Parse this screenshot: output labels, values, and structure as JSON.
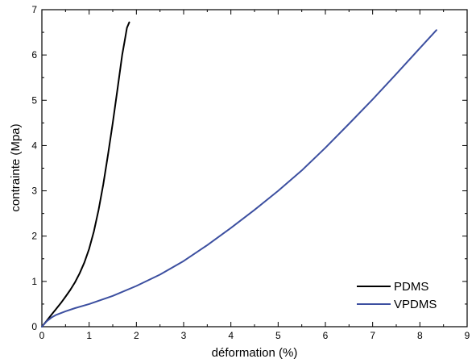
{
  "chart_data": {
    "type": "line",
    "xlabel": "déformation (%)",
    "ylabel": "contrainte (Mpa)",
    "xlim": [
      0,
      9
    ],
    "ylim": [
      0,
      7
    ],
    "xticks": [
      "0",
      "1",
      "2",
      "3",
      "4",
      "5",
      "6",
      "7",
      "8",
      "9"
    ],
    "yticks": [
      "0",
      "1",
      "2",
      "3",
      "4",
      "5",
      "6",
      "7"
    ],
    "grid": false,
    "legend_position": "bottom-right",
    "series": [
      {
        "name": "PDMS",
        "color": "#000000",
        "x": [
          0,
          0.1,
          0.2,
          0.3,
          0.4,
          0.5,
          0.6,
          0.7,
          0.8,
          0.9,
          1.0,
          1.1,
          1.2,
          1.3,
          1.4,
          1.5,
          1.6,
          1.7,
          1.75,
          1.8,
          1.85
        ],
        "y": [
          0,
          0.13,
          0.26,
          0.39,
          0.52,
          0.66,
          0.81,
          0.98,
          1.18,
          1.42,
          1.72,
          2.1,
          2.58,
          3.15,
          3.8,
          4.5,
          5.25,
          6.0,
          6.3,
          6.6,
          6.72
        ]
      },
      {
        "name": "VPDMS",
        "color": "#3c4fa0",
        "x": [
          0,
          0.1,
          0.2,
          0.3,
          0.5,
          0.7,
          1.0,
          1.5,
          2.0,
          2.5,
          3.0,
          3.5,
          4.0,
          4.5,
          5.0,
          5.5,
          6.0,
          6.5,
          7.0,
          7.5,
          8.0,
          8.35
        ],
        "y": [
          0,
          0.12,
          0.2,
          0.26,
          0.34,
          0.41,
          0.5,
          0.68,
          0.9,
          1.15,
          1.45,
          1.8,
          2.18,
          2.58,
          3.0,
          3.45,
          3.95,
          4.48,
          5.02,
          5.58,
          6.15,
          6.55
        ]
      }
    ]
  }
}
